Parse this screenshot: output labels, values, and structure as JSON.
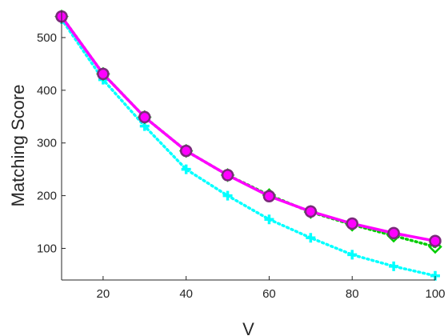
{
  "chart_data": {
    "type": "line",
    "xlabel": "V",
    "ylabel": "Matching Score",
    "xlim": [
      10,
      100
    ],
    "ylim": [
      40,
      550
    ],
    "xticks": [
      20,
      40,
      60,
      80,
      100
    ],
    "yticks": [
      100,
      200,
      300,
      400,
      500
    ],
    "grid": false,
    "legend": "none",
    "box": "left-bottom axes only",
    "x": [
      10,
      20,
      30,
      40,
      50,
      60,
      70,
      80,
      90,
      100
    ],
    "series": [
      {
        "color": "#00ffff",
        "line_style": "dotted",
        "marker": "plus",
        "values": [
          535,
          420,
          332,
          250,
          200,
          155,
          120,
          88,
          66,
          48
        ]
      },
      {
        "color": "#00cc00",
        "line_style": "dotted",
        "marker": "diamond",
        "values": [
          540,
          431,
          349,
          285,
          239,
          201,
          169,
          145,
          124,
          103
        ]
      },
      {
        "color": "#ff00ff",
        "line_style": "solid",
        "marker": "circle",
        "values": [
          540,
          431,
          349,
          285,
          239,
          199,
          170,
          147,
          129,
          114
        ]
      }
    ]
  }
}
